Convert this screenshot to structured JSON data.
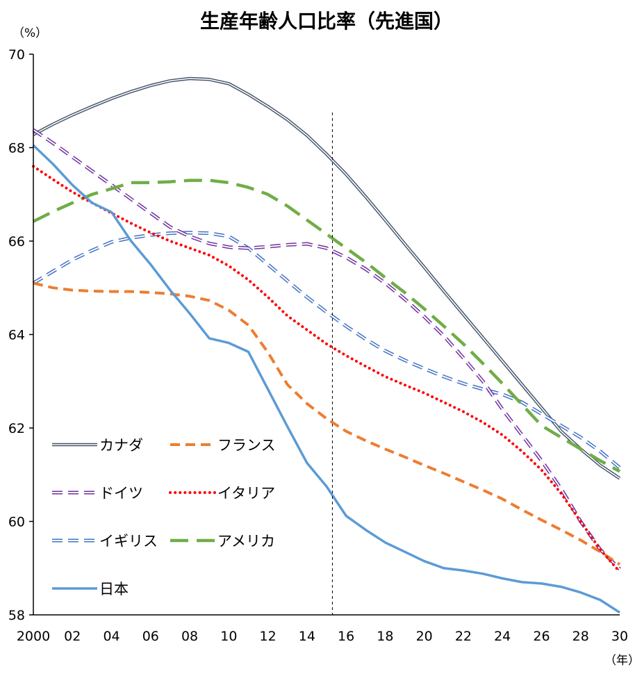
{
  "chart_data": {
    "type": "line",
    "title": "生産年齢人口比率（先進国）",
    "y_unit": "（%）",
    "x_unit": "（年）",
    "ylim": [
      58,
      70
    ],
    "y_ticks": [
      58,
      60,
      62,
      64,
      66,
      68,
      70
    ],
    "xlim": [
      2000,
      2030
    ],
    "x_ticks": [
      2000,
      2002,
      2004,
      2006,
      2008,
      2010,
      2012,
      2014,
      2016,
      2018,
      2020,
      2022,
      2024,
      2026,
      2028,
      2030
    ],
    "x_tick_labels": [
      "2000",
      "02",
      "04",
      "06",
      "08",
      "10",
      "12",
      "14",
      "16",
      "18",
      "20",
      "22",
      "24",
      "26",
      "28",
      "30"
    ],
    "grid": false,
    "legend_position": "bottom-left",
    "reference_line_x": 2015.3,
    "x": [
      2000,
      2001,
      2002,
      2003,
      2004,
      2005,
      2006,
      2007,
      2008,
      2009,
      2010,
      2011,
      2012,
      2013,
      2014,
      2015,
      2016,
      2017,
      2018,
      2019,
      2020,
      2021,
      2022,
      2023,
      2024,
      2025,
      2026,
      2027,
      2028,
      2029,
      2030
    ],
    "series": [
      {
        "name": "カナダ",
        "color": "#44546A",
        "style": "double",
        "values": [
          68.28,
          68.5,
          68.7,
          68.88,
          69.05,
          69.2,
          69.33,
          69.43,
          69.48,
          69.46,
          69.37,
          69.14,
          68.88,
          68.6,
          68.26,
          67.86,
          67.43,
          66.95,
          66.45,
          65.94,
          65.44,
          64.93,
          64.43,
          63.93,
          63.43,
          62.93,
          62.43,
          61.93,
          61.55,
          61.2,
          60.92
        ]
      },
      {
        "name": "フランス",
        "color": "#ED7D31",
        "style": "dashed",
        "values": [
          65.1,
          65.0,
          64.95,
          64.93,
          64.92,
          64.92,
          64.9,
          64.87,
          64.82,
          64.73,
          64.52,
          64.2,
          63.62,
          62.93,
          62.52,
          62.2,
          61.93,
          61.73,
          61.55,
          61.38,
          61.2,
          61.03,
          60.85,
          60.67,
          60.48,
          60.25,
          60.03,
          59.82,
          59.6,
          59.35,
          59.08
        ]
      },
      {
        "name": "ドイツ",
        "color": "#7030A0",
        "style": "double-dash",
        "values": [
          68.38,
          68.1,
          67.8,
          67.5,
          67.2,
          66.9,
          66.6,
          66.3,
          66.1,
          65.95,
          65.87,
          65.85,
          65.88,
          65.92,
          65.94,
          65.85,
          65.65,
          65.4,
          65.1,
          64.76,
          64.38,
          63.97,
          63.5,
          63.0,
          62.4,
          61.85,
          61.3,
          60.7,
          60.0,
          59.4,
          58.98
        ]
      },
      {
        "name": "イタリア",
        "color": "#FF0000",
        "style": "dotted",
        "values": [
          67.6,
          67.32,
          67.05,
          66.82,
          66.6,
          66.38,
          66.18,
          66.0,
          65.85,
          65.7,
          65.47,
          65.17,
          64.8,
          64.4,
          64.1,
          63.8,
          63.55,
          63.32,
          63.1,
          62.92,
          62.75,
          62.55,
          62.35,
          62.12,
          61.85,
          61.5,
          61.1,
          60.6,
          60.0,
          59.4,
          58.92
        ]
      },
      {
        "name": "イギリス",
        "color": "#4472C4",
        "style": "double-dash",
        "values": [
          65.1,
          65.35,
          65.6,
          65.8,
          65.98,
          66.07,
          66.13,
          66.17,
          66.18,
          66.17,
          66.1,
          65.85,
          65.5,
          65.15,
          64.8,
          64.48,
          64.18,
          63.9,
          63.65,
          63.45,
          63.27,
          63.1,
          62.95,
          62.83,
          62.72,
          62.55,
          62.3,
          62.05,
          61.8,
          61.5,
          61.15
        ]
      },
      {
        "name": "アメリカ",
        "color": "#70AD47",
        "style": "long-dash",
        "values": [
          66.42,
          66.63,
          66.82,
          67.0,
          67.12,
          67.25,
          67.25,
          67.27,
          67.3,
          67.3,
          67.25,
          67.15,
          67.0,
          66.75,
          66.45,
          66.15,
          65.85,
          65.55,
          65.22,
          64.9,
          64.55,
          64.18,
          63.8,
          63.38,
          62.95,
          62.5,
          62.05,
          61.8,
          61.55,
          61.3,
          61.07
        ]
      },
      {
        "name": "日本",
        "color": "#5B9BD5",
        "style": "solid",
        "values": [
          68.05,
          67.65,
          67.2,
          66.82,
          66.62,
          66.0,
          65.5,
          64.95,
          64.45,
          63.92,
          63.82,
          63.63,
          62.83,
          62.03,
          61.25,
          60.75,
          60.12,
          59.82,
          59.55,
          59.35,
          59.15,
          59.0,
          58.95,
          58.88,
          58.78,
          58.7,
          58.67,
          58.6,
          58.48,
          58.32,
          58.05
        ]
      }
    ]
  }
}
